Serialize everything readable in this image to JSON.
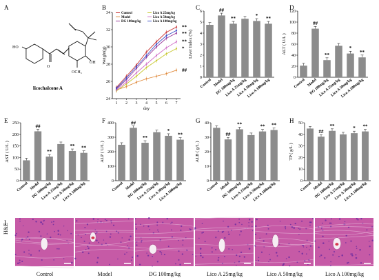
{
  "panel_letters": [
    "A",
    "B",
    "C",
    "D",
    "E",
    "F",
    "G",
    "H",
    "I"
  ],
  "compound": {
    "name": "licochalcone A",
    "ome": "OCH₃",
    "ho": "HO",
    "oh": "OH",
    "o": "O"
  },
  "line_chart": {
    "type": "line",
    "xlabel": "day",
    "ylabel": "Weight(g)",
    "x": [
      1,
      2,
      3,
      4,
      5,
      6,
      7
    ],
    "ylim": [
      24,
      34
    ],
    "yticks": [
      24,
      26,
      28,
      30,
      32,
      34
    ],
    "series": [
      {
        "name": "Control",
        "color": "#c83232",
        "values": [
          25.3,
          26.6,
          27.9,
          29.4,
          30.6,
          31.7,
          32.3
        ]
      },
      {
        "name": "Model",
        "color": "#e08a3c",
        "values": [
          25.0,
          25.4,
          25.9,
          26.3,
          26.6,
          26.9,
          27.3
        ]
      },
      {
        "name": "DG 100mg/kg",
        "color": "#9a3a9a",
        "values": [
          25.1,
          26.2,
          27.5,
          28.8,
          30.0,
          31.0,
          31.6
        ]
      },
      {
        "name": "Lico A 25mg/kg",
        "color": "#c8c832",
        "values": [
          24.9,
          25.7,
          26.6,
          27.6,
          28.4,
          29.2,
          29.8
        ]
      },
      {
        "name": "Lico A 50mg/kg",
        "color": "#d070c8",
        "values": [
          25.0,
          25.9,
          27.0,
          28.0,
          29.0,
          29.9,
          30.6
        ]
      },
      {
        "name": "Lico A 100mg/kg",
        "color": "#3c50c8",
        "values": [
          25.2,
          26.4,
          27.7,
          29.0,
          30.3,
          31.3,
          31.9
        ]
      }
    ],
    "annotations": [
      {
        "text": "**",
        "y": 32.3
      },
      {
        "text": "**",
        "y": 31.6
      },
      {
        "text": "**",
        "y": 30.6
      },
      {
        "text": "*",
        "y": 29.8
      },
      {
        "text": "##",
        "y": 27.3
      }
    ]
  },
  "categories": [
    "Control",
    "Model",
    "DG 100mg/kg",
    "Lico A 25mg/kg",
    "Lico A 50mg/kg",
    "Lico A 100mg/kg"
  ],
  "chart_data": [
    {
      "panel": "C",
      "type": "bar",
      "ylabel": "Liver Index (%)",
      "ylim": [
        0,
        6
      ],
      "yticks": [
        0,
        1,
        2,
        3,
        4,
        5,
        6
      ],
      "values": [
        4.75,
        5.6,
        4.85,
        5.3,
        5.1,
        4.85
      ],
      "sig": [
        "",
        "##",
        "**",
        "",
        "*",
        "**"
      ]
    },
    {
      "panel": "D",
      "type": "bar",
      "ylabel": "ALT ( U/L )",
      "ylim": [
        0,
        120
      ],
      "yticks": [
        0,
        20,
        40,
        60,
        80,
        100,
        120
      ],
      "values": [
        21,
        88,
        31,
        57,
        43,
        36
      ],
      "sig": [
        "",
        "##",
        "**",
        "",
        "*",
        "**"
      ]
    },
    {
      "panel": "E",
      "type": "bar",
      "ylabel": "AST ( U/L )",
      "ylim": [
        0,
        250
      ],
      "yticks": [
        0,
        50,
        100,
        150,
        200,
        250
      ],
      "values": [
        88,
        213,
        104,
        158,
        128,
        120
      ],
      "sig": [
        "",
        "##",
        "**",
        "",
        "**",
        "**"
      ]
    },
    {
      "panel": "F",
      "type": "bar",
      "ylabel": "ALP ( U/L )",
      "ylim": [
        0,
        400
      ],
      "yticks": [
        0,
        100,
        200,
        300,
        400
      ],
      "values": [
        248,
        365,
        262,
        335,
        310,
        283
      ],
      "sig": [
        "",
        "##",
        "**",
        "",
        "*",
        "**"
      ]
    },
    {
      "panel": "G",
      "type": "bar",
      "ylabel": "ALB ( g/L )",
      "ylim": [
        0,
        40
      ],
      "yticks": [
        0,
        10,
        20,
        30,
        40
      ],
      "values": [
        36.5,
        28.5,
        35.5,
        31.5,
        34.0,
        35.0
      ],
      "sig": [
        "",
        "##",
        "**",
        "",
        "**",
        "**"
      ]
    },
    {
      "panel": "H",
      "type": "bar",
      "ylabel": "TP ( g/L )",
      "ylim": [
        0,
        50
      ],
      "yticks": [
        0,
        10,
        20,
        30,
        40,
        50
      ],
      "values": [
        45,
        38,
        43,
        40,
        41,
        42.5
      ],
      "sig": [
        "",
        "##",
        "**",
        "",
        "*",
        "**"
      ]
    }
  ],
  "histology": {
    "row_label": "H&E",
    "labels": [
      "Control",
      "Model",
      "DG 100mg/kg",
      "Lico A 25mg/kg",
      "Lico A 50mg/kg",
      "Lico A 100mg/kg"
    ],
    "tissue_color": "#c65aa6",
    "nucleus_color": "#6a2aa0",
    "lumen_color": "#f6eef4"
  }
}
